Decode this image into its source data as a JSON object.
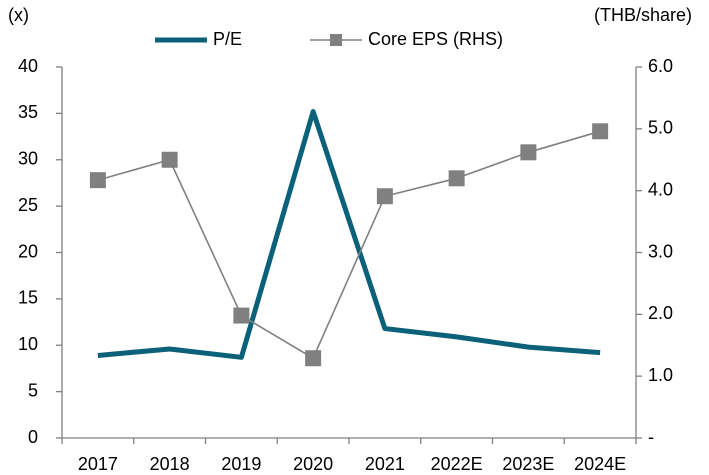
{
  "chart_data": {
    "type": "line",
    "y_label": "(x)",
    "y2_label": "(THB/share)",
    "categories": [
      "2017",
      "2018",
      "2019",
      "2020",
      "2021",
      "2022E",
      "2023E",
      "2024E"
    ],
    "series": [
      {
        "name": "P/E",
        "color": "#0b6179",
        "values": [
          8.9,
          9.6,
          8.7,
          35.2,
          11.8,
          10.9,
          9.8,
          9.2
        ]
      },
      {
        "name": "Core EPS (RHS)",
        "color": "#808080",
        "axis": "y2",
        "marker": "square",
        "values": [
          4.17,
          4.5,
          1.98,
          1.29,
          3.91,
          4.2,
          4.62,
          4.96
        ]
      }
    ],
    "ylim": [
      0,
      40
    ],
    "yticks": [
      0,
      5,
      10,
      15,
      20,
      25,
      30,
      35,
      40
    ],
    "y2lim": [
      0,
      6
    ],
    "y2ticks": [
      {
        "value": 0,
        "label": "-"
      },
      {
        "value": 1,
        "label": "1.0"
      },
      {
        "value": 2,
        "label": "2.0"
      },
      {
        "value": 3,
        "label": "3.0"
      },
      {
        "value": 4,
        "label": "4.0"
      },
      {
        "value": 5,
        "label": "5.0"
      },
      {
        "value": 6,
        "label": "6.0"
      }
    ]
  }
}
